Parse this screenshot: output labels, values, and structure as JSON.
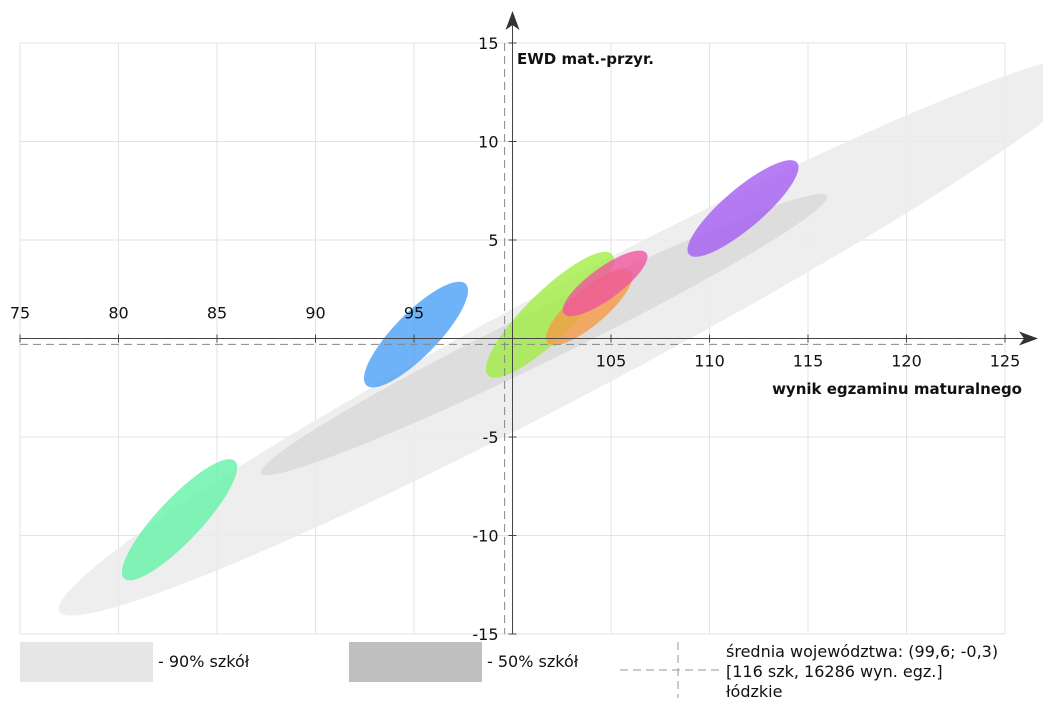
{
  "chart_data": {
    "type": "scatter",
    "title": "",
    "xlabel": "wynik egzaminu maturalnego",
    "ylabel": "EWD mat.-przyr.",
    "xlim": [
      75,
      125
    ],
    "ylim": [
      -15,
      15
    ],
    "x_ticks": [
      75,
      80,
      85,
      90,
      95,
      105,
      110,
      115,
      120,
      125
    ],
    "y_ticks": [
      15,
      10,
      5,
      -5,
      -10,
      -15
    ],
    "grid": true,
    "mean": {
      "x": 99.6,
      "y": -0.3
    },
    "regions": [
      {
        "name": "90% szkół",
        "cx": 103.5,
        "cy": 0.2,
        "rx": 30.0,
        "ry": 2.8,
        "angle_data_slope": 0.53,
        "color": "#ebebeb"
      },
      {
        "name": "50% szkół",
        "cx": 101.6,
        "cy": 0.2,
        "rx": 16.0,
        "ry": 1.3,
        "angle_data_slope": 0.49,
        "color": "#d9d9d9"
      }
    ],
    "schools": [
      {
        "cx": 95.1,
        "cy": 0.2,
        "rx": 3.6,
        "ry": 1.1,
        "slope": 1.02,
        "color": "#4a9ff5"
      },
      {
        "cx": 101.9,
        "cy": 1.2,
        "rx": 4.4,
        "ry": 1.2,
        "slope": 0.98,
        "color": "#a3ec45"
      },
      {
        "cx": 103.9,
        "cy": 1.6,
        "rx": 2.8,
        "ry": 0.9,
        "slope": 0.86,
        "color": "#f59b46"
      },
      {
        "cx": 104.7,
        "cy": 2.8,
        "rx": 2.6,
        "ry": 0.8,
        "slope": 0.73,
        "color": "#f0559d"
      },
      {
        "cx": 111.7,
        "cy": 6.6,
        "rx": 3.6,
        "ry": 1.0,
        "slope": 0.85,
        "color": "#a55cf2"
      },
      {
        "cx": 83.1,
        "cy": -9.2,
        "rx": 4.1,
        "ry": 1.1,
        "slope": 1.06,
        "color": "#64f3a6"
      }
    ]
  },
  "legend": {
    "label_90": "- 90% szkół",
    "label_50": "- 50% szkół",
    "swatch_90_color": "#e6e6e6",
    "swatch_50_color": "#bfbfbf",
    "mean_line1": "średnia województwa: (99,6; -0,3)",
    "mean_line2": "[116 szk, 16286 wyn. egz.]",
    "mean_line3": "łódzkie"
  }
}
